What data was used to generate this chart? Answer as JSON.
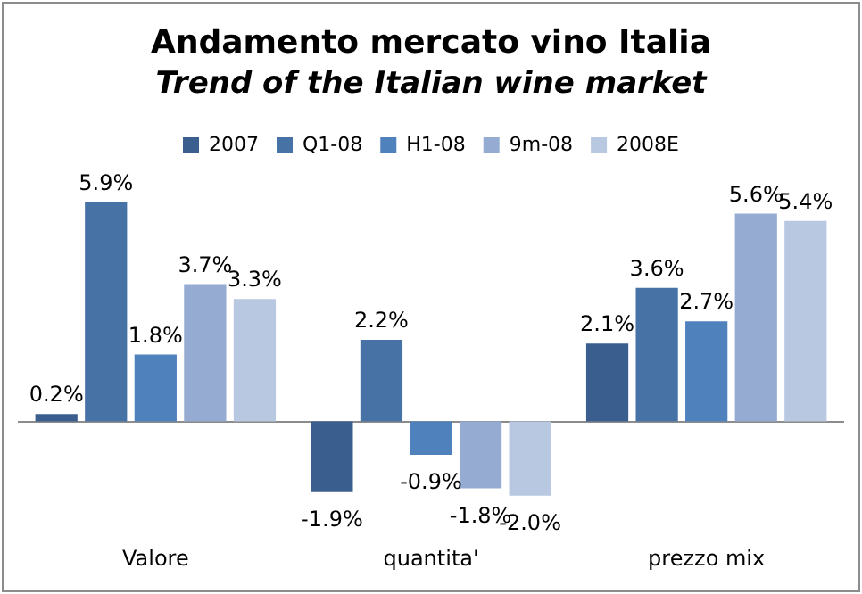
{
  "chart_data": {
    "type": "bar",
    "title": "Andamento mercato vino Italia",
    "subtitle": "Trend of the Italian wine market",
    "categories": [
      "Valore",
      "quantita'",
      "prezzo mix"
    ],
    "series": [
      {
        "name": "2007",
        "color": "#3a5f8f",
        "values": [
          0.2,
          -1.9,
          2.1
        ],
        "value_labels": [
          "0.2%",
          "-1.9%",
          "2.1%"
        ]
      },
      {
        "name": "Q1-08",
        "color": "#4672a5",
        "values": [
          5.9,
          2.2,
          3.6
        ],
        "value_labels": [
          "5.9%",
          "2.2%",
          "3.6%"
        ]
      },
      {
        "name": "H1-08",
        "color": "#4f81bd",
        "values": [
          1.8,
          -0.9,
          2.7
        ],
        "value_labels": [
          "1.8%",
          "-0.9%",
          "2.7%"
        ]
      },
      {
        "name": "9m-08",
        "color": "#95abd2",
        "values": [
          3.7,
          -1.8,
          5.6
        ],
        "value_labels": [
          "3.7%",
          "-1.8%",
          "5.6%"
        ]
      },
      {
        "name": "2008E",
        "color": "#b9c8e1",
        "values": [
          3.3,
          -2.0,
          5.4
        ],
        "value_labels": [
          "3.3%",
          "-2.0%",
          "5.4%"
        ]
      }
    ],
    "legend": "top",
    "grid": false
  }
}
